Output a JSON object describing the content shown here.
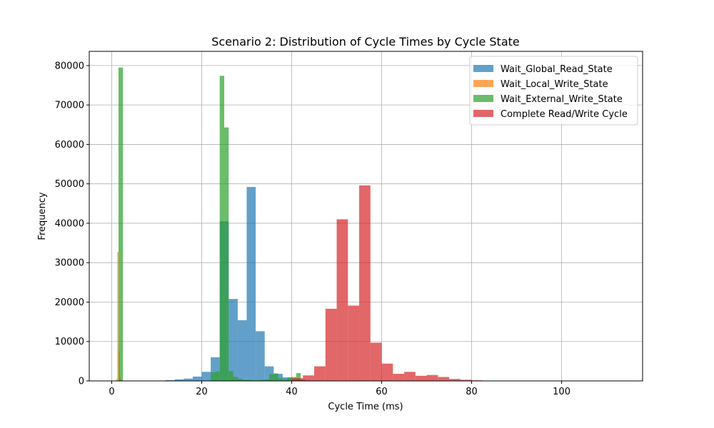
{
  "chart_data": {
    "type": "bar",
    "title": "Scenario 2: Distribution of Cycle Times by Cycle State",
    "xlabel": "Cycle Time (ms)",
    "ylabel": "Frequency",
    "xlim": [
      -5,
      118
    ],
    "ylim": [
      0,
      83600
    ],
    "xticks": [
      0,
      20,
      40,
      60,
      80,
      100
    ],
    "yticks": [
      0,
      10000,
      20000,
      30000,
      40000,
      50000,
      60000,
      70000,
      80000
    ],
    "grid": true,
    "legend_position": "top-right",
    "series": [
      {
        "name": "Wait_Global_Read_State",
        "color": "#1f77b4",
        "bin_width": 2,
        "bins": [
          [
            12,
            200
          ],
          [
            14,
            400
          ],
          [
            16,
            600
          ],
          [
            18,
            1100
          ],
          [
            20,
            2300
          ],
          [
            22,
            6000
          ],
          [
            24,
            40500
          ],
          [
            26,
            20800
          ],
          [
            28,
            15400
          ],
          [
            30,
            49200
          ],
          [
            32,
            12600
          ],
          [
            34,
            3700
          ],
          [
            36,
            1800
          ],
          [
            38,
            900
          ],
          [
            40,
            500
          ],
          [
            42,
            200
          ]
        ]
      },
      {
        "name": "Wait_Local_Write_State",
        "color": "#ff7f0e",
        "bin_width": 0.25,
        "bins": [
          [
            1.0,
            500
          ],
          [
            1.25,
            32700
          ],
          [
            1.5,
            7500
          ],
          [
            1.75,
            900
          ],
          [
            2.0,
            300
          ]
        ]
      },
      {
        "name": "Wait_External_Write_State",
        "color": "#2ca02c",
        "bin_width": 1,
        "bins": [
          [
            1.5,
            79500
          ],
          [
            22,
            2200
          ],
          [
            23,
            2400
          ],
          [
            24,
            77400
          ],
          [
            25,
            64300
          ],
          [
            26,
            2500
          ],
          [
            27,
            1000
          ],
          [
            28,
            600
          ],
          [
            29,
            300
          ],
          [
            30,
            300
          ],
          [
            31,
            200
          ],
          [
            32,
            200
          ],
          [
            33,
            300
          ],
          [
            34,
            400
          ],
          [
            35,
            1700
          ],
          [
            36,
            1900
          ],
          [
            37,
            700
          ],
          [
            38,
            400
          ],
          [
            39,
            800
          ],
          [
            40,
            1000
          ],
          [
            41,
            2000
          ],
          [
            42,
            400
          ]
        ]
      },
      {
        "name": "Complete Read/Write Cycle",
        "color": "#d62728",
        "bin_width": 2.5,
        "bins": [
          [
            40,
            700
          ],
          [
            42.5,
            1400
          ],
          [
            45,
            3700
          ],
          [
            47.5,
            18300
          ],
          [
            50,
            41000
          ],
          [
            52.5,
            19100
          ],
          [
            55,
            49600
          ],
          [
            57.5,
            9700
          ],
          [
            60,
            4400
          ],
          [
            62.5,
            1800
          ],
          [
            65,
            2300
          ],
          [
            67.5,
            1300
          ],
          [
            70,
            1500
          ],
          [
            72.5,
            1000
          ],
          [
            75,
            500
          ],
          [
            77.5,
            300
          ],
          [
            80,
            150
          ],
          [
            82.5,
            80
          ],
          [
            85,
            40
          ]
        ]
      }
    ]
  }
}
